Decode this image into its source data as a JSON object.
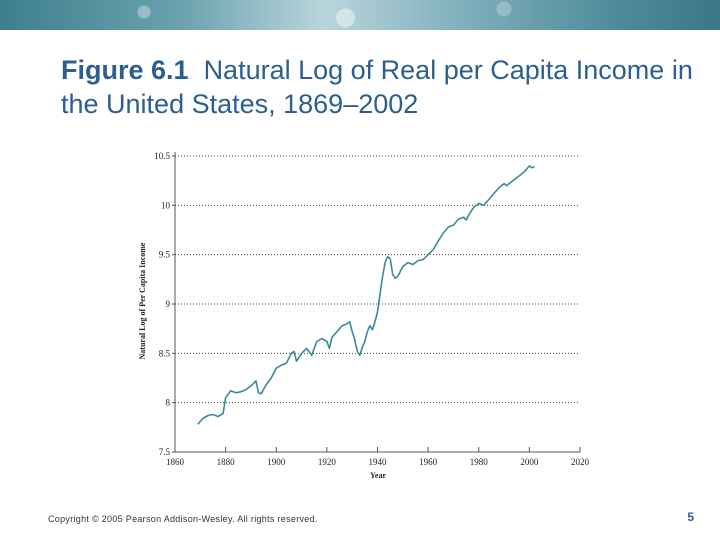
{
  "slide": {
    "title_num": "Figure 6.1",
    "title_text": "Natural Log of Real per Capita Income in the United States, 1869–2002",
    "copyright": "Copyright © 2005 Pearson Addison-Wesley. All rights reserved.",
    "page_number": "5"
  },
  "chart_data": {
    "type": "line",
    "title": "Figure 6.1  Natural Log of Real per Capita Income in the United States, 1869–2002",
    "xlabel": "Year",
    "ylabel": "Natural Log of Per Capita Income",
    "xlim": [
      1860,
      2020
    ],
    "ylim": [
      7.5,
      10.5
    ],
    "x_ticks": [
      1860,
      1880,
      1900,
      1920,
      1940,
      1960,
      1980,
      2000,
      2020
    ],
    "y_ticks": [
      7.5,
      8,
      8.5,
      9,
      9.5,
      10,
      10.5
    ],
    "x_tick_labels": [
      "1860",
      "1880",
      "1900",
      "1920",
      "1940",
      "1960",
      "1980",
      "2000",
      "2020"
    ],
    "y_tick_labels": [
      "7.5",
      "8",
      "8.5",
      "9",
      "9.5",
      "10",
      "10.5"
    ],
    "grid": "horizontal dotted",
    "series": [
      {
        "name": "Natural Log of Real per Capita Income",
        "color": "#3a8a98",
        "x": [
          1869,
          1871,
          1873,
          1875,
          1877,
          1879,
          1880,
          1882,
          1884,
          1886,
          1888,
          1890,
          1892,
          1893,
          1894,
          1896,
          1898,
          1900,
          1902,
          1904,
          1906,
          1907,
          1908,
          1910,
          1912,
          1914,
          1916,
          1918,
          1920,
          1921,
          1922,
          1924,
          1926,
          1928,
          1929,
          1930,
          1931,
          1932,
          1933,
          1934,
          1935,
          1936,
          1937,
          1938,
          1939,
          1940,
          1941,
          1942,
          1943,
          1944,
          1945,
          1946,
          1947,
          1948,
          1950,
          1952,
          1954,
          1956,
          1958,
          1960,
          1962,
          1964,
          1966,
          1968,
          1970,
          1972,
          1974,
          1975,
          1976,
          1978,
          1980,
          1982,
          1984,
          1986,
          1988,
          1990,
          1991,
          1992,
          1994,
          1996,
          1998,
          2000,
          2001,
          2002
        ],
        "values": [
          7.78,
          7.84,
          7.87,
          7.88,
          7.86,
          7.89,
          8.05,
          8.12,
          8.1,
          8.11,
          8.13,
          8.17,
          8.22,
          8.1,
          8.09,
          8.18,
          8.25,
          8.35,
          8.38,
          8.4,
          8.5,
          8.52,
          8.42,
          8.5,
          8.55,
          8.48,
          8.62,
          8.65,
          8.62,
          8.55,
          8.66,
          8.72,
          8.78,
          8.8,
          8.82,
          8.72,
          8.64,
          8.52,
          8.48,
          8.56,
          8.62,
          8.72,
          8.78,
          8.74,
          8.82,
          8.92,
          9.1,
          9.28,
          9.42,
          9.48,
          9.46,
          9.3,
          9.26,
          9.28,
          9.38,
          9.42,
          9.4,
          9.44,
          9.45,
          9.5,
          9.55,
          9.64,
          9.72,
          9.78,
          9.8,
          9.86,
          9.88,
          9.85,
          9.9,
          9.98,
          10.02,
          10.0,
          10.06,
          10.12,
          10.18,
          10.22,
          10.2,
          10.22,
          10.26,
          10.3,
          10.34,
          10.4,
          10.38,
          10.39
        ]
      }
    ]
  }
}
